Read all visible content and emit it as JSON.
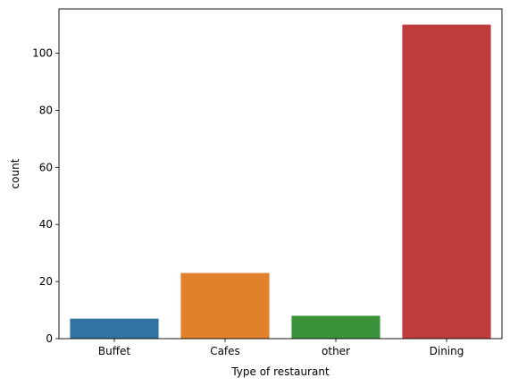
{
  "chart_data": {
    "type": "bar",
    "title": "",
    "xlabel": "Type of restaurant",
    "ylabel": "count",
    "categories": [
      "Buffet",
      "Cafes",
      "other",
      "Dining"
    ],
    "values": [
      7,
      23,
      8,
      110
    ],
    "colors": [
      "#3274a1",
      "#e1812c",
      "#3a923a",
      "#c03d3e"
    ],
    "ylim": [
      0,
      115.5
    ],
    "yticks": [
      0,
      20,
      40,
      60,
      80,
      100
    ],
    "grid": false,
    "legend": "none"
  }
}
